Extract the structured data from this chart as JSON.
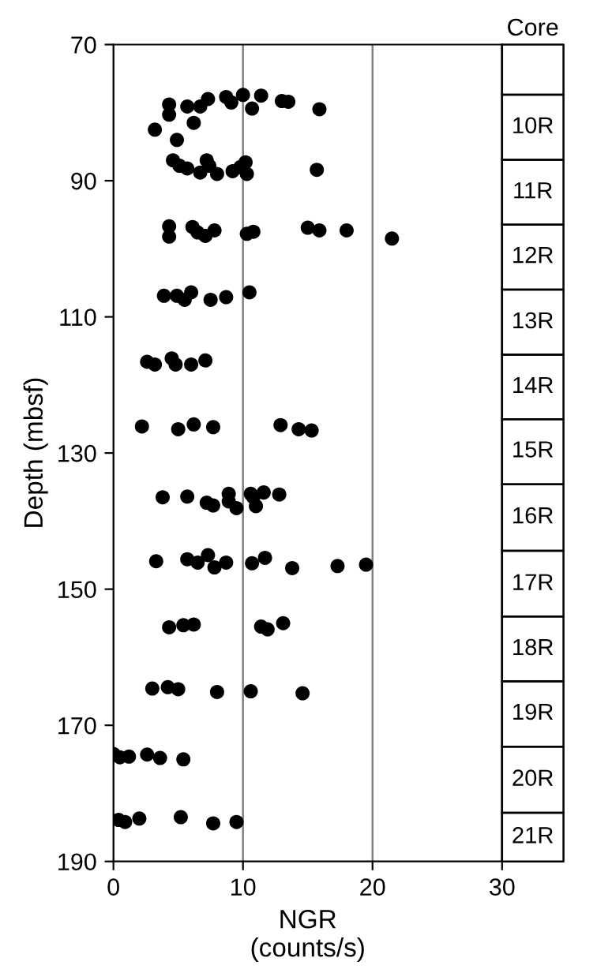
{
  "chart_data": {
    "type": "scatter",
    "xlabel": "NGR\n(counts/s)",
    "ylabel": "Depth (mbsf)",
    "xlim": [
      0,
      30
    ],
    "xticks": [
      0,
      10,
      20,
      30
    ],
    "ylim": [
      190,
      70
    ],
    "yticks": [
      70,
      90,
      110,
      130,
      150,
      170,
      190
    ],
    "grid": "x",
    "marker": "circle",
    "annotations": [
      "Core",
      {
        "text": "10R",
        "y": 82.15
      },
      {
        "text": "11R",
        "y": 91.7
      },
      {
        "text": "12R",
        "y": 101.2
      },
      {
        "text": "13R",
        "y": 110.8
      },
      {
        "text": "14R",
        "y": 120.3
      },
      {
        "text": "15R",
        "y": 129.75
      },
      {
        "text": "16R",
        "y": 139.45
      },
      {
        "text": "17R",
        "y": 149.25
      },
      {
        "text": "18R",
        "y": 158.8
      },
      {
        "text": "19R",
        "y": 168.3
      },
      {
        "text": "20R",
        "y": 178.0
      },
      "21R"
    ],
    "series": [
      {
        "color": "#000000",
        "x": [
          4.3,
          4.3,
          5.7,
          6.7,
          7.3,
          8.7,
          9.1,
          10.0,
          10.7,
          11.4,
          13.0,
          13.5,
          15.9,
          3.2,
          6.2,
          4.9,
          4.6,
          5.1,
          5.7,
          6.7,
          7.2,
          7.4,
          8.0,
          9.2,
          10.2,
          10.3,
          9.8,
          15.7,
          4.3,
          4.3,
          6.1,
          6.5,
          7.1,
          7.8,
          10.3,
          10.8,
          15.0,
          15.9,
          18.0,
          21.5,
          3.9,
          4.9,
          5.5,
          6.0,
          7.5,
          8.7,
          10.5,
          2.6,
          3.2,
          4.5,
          4.8,
          6.0,
          7.1,
          2.2,
          5.0,
          6.2,
          7.7,
          12.9,
          14.3,
          15.3,
          3.8,
          5.7,
          7.2,
          7.7,
          8.9,
          8.9,
          9.5,
          10.6,
          11.0,
          11.6,
          12.8,
          10.8,
          3.3,
          5.7,
          6.5,
          7.3,
          7.8,
          8.7,
          10.7,
          11.7,
          13.8,
          17.3,
          19.5,
          4.3,
          5.4,
          6.2,
          11.4,
          11.9,
          13.1,
          3.0,
          4.2,
          5.0,
          8.0,
          10.6,
          14.6,
          0.0,
          0.5,
          1.2,
          2.6,
          3.6,
          5.4,
          0.4,
          0.9,
          2.0,
          5.2,
          7.7,
          9.5
        ],
        "values": [
          78.8,
          80.3,
          79.1,
          79.1,
          78.0,
          77.7,
          78.5,
          77.4,
          79.4,
          77.5,
          78.3,
          78.4,
          79.5,
          82.5,
          81.5,
          84.0,
          87.0,
          87.8,
          88.2,
          88.8,
          87.0,
          87.8,
          89.0,
          88.6,
          87.3,
          89.0,
          88.0,
          88.4,
          96.7,
          98.2,
          96.8,
          97.6,
          98.1,
          97.3,
          97.8,
          97.5,
          96.9,
          97.3,
          97.3,
          98.5,
          106.9,
          106.9,
          107.5,
          106.4,
          107.5,
          107.1,
          106.4,
          116.6,
          117.0,
          116.1,
          117.0,
          117.0,
          116.4,
          126.1,
          126.5,
          125.8,
          126.2,
          125.9,
          126.5,
          126.7,
          136.5,
          136.4,
          137.3,
          137.7,
          136.0,
          137.1,
          138.1,
          136.0,
          137.8,
          135.8,
          136.1,
          136.5,
          145.9,
          145.6,
          146.1,
          145.0,
          146.8,
          146.1,
          146.2,
          145.4,
          146.9,
          146.6,
          146.4,
          155.6,
          155.3,
          155.2,
          155.5,
          155.9,
          155.0,
          164.6,
          164.4,
          164.7,
          165.1,
          165.0,
          165.3,
          174.2,
          174.7,
          174.6,
          174.3,
          174.8,
          175.0,
          183.9,
          184.2,
          183.7,
          183.5,
          184.4,
          184.2
        ]
      }
    ]
  }
}
